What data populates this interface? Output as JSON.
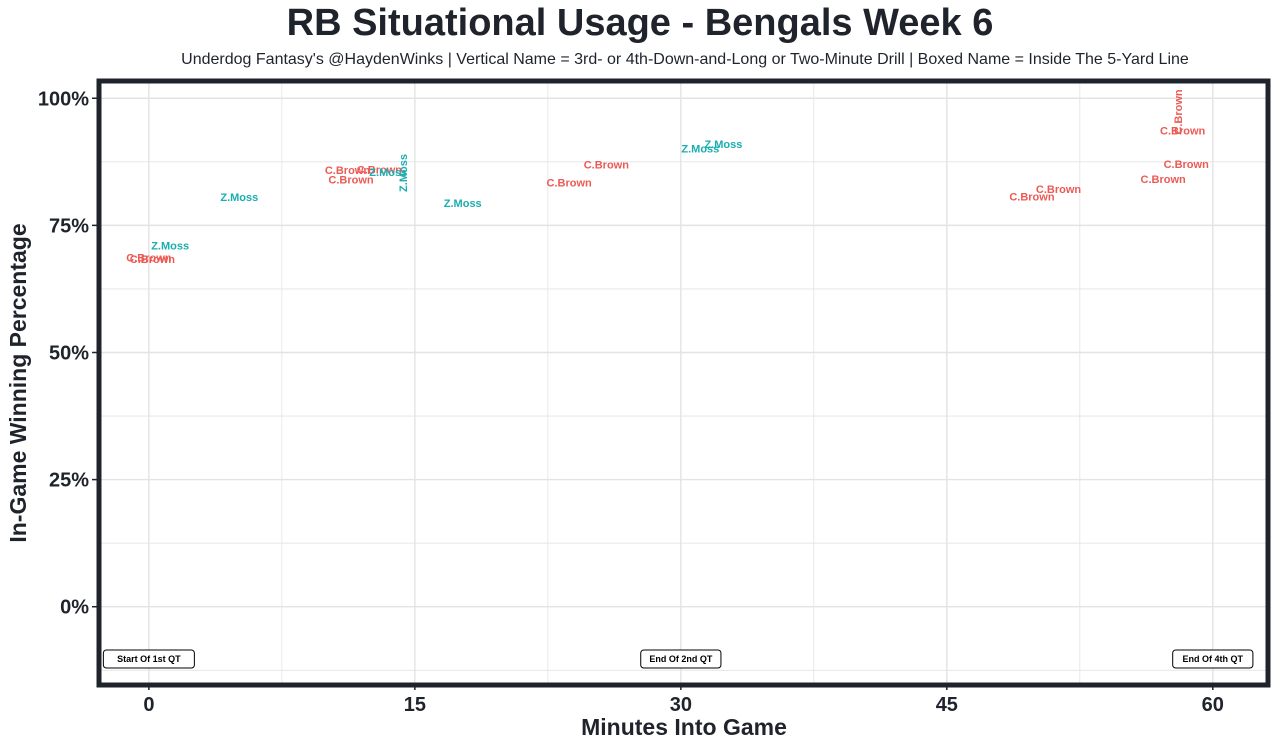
{
  "title": "RB Situational Usage - Bengals Week 6",
  "subtitle": "Underdog Fantasy's @HaydenWinks | Vertical Name = 3rd- or 4th-Down-and-Long or Two-Minute Drill | Boxed Name = Inside The 5-Yard Line",
  "colors": {
    "C.Brown": "#ec5a55",
    "Z.Moss": "#1aaeb0",
    "frame": "#1f232b",
    "grid": "#e3e3e3"
  },
  "chart_data": {
    "type": "scatter",
    "xlabel": "Minutes Into Game",
    "ylabel": "In-Game Winning Percentage",
    "xlim": [
      -2.7,
      63
    ],
    "ylim": [
      -15,
      103
    ],
    "x_ticks": [
      0,
      15,
      30,
      45,
      60
    ],
    "x_tick_labels": [
      "0",
      "15",
      "30",
      "45",
      "60"
    ],
    "y_ticks": [
      0,
      25,
      50,
      75,
      100
    ],
    "y_tick_labels": [
      "0%",
      "25%",
      "50%",
      "75%",
      "100%"
    ],
    "grid": true,
    "quarter_markers": [
      {
        "x": 0,
        "label": "Start Of 1st QT"
      },
      {
        "x": 30,
        "label": "End Of 2nd QT"
      },
      {
        "x": 60,
        "label": "End Of 4th QT"
      }
    ],
    "points": [
      {
        "player": "C.Brown",
        "x": 0.0,
        "y": 68.5,
        "vertical": false
      },
      {
        "player": "C.Brown",
        "x": 0.2,
        "y": 68.2,
        "vertical": false
      },
      {
        "player": "Z.Moss",
        "x": 1.2,
        "y": 70.8,
        "vertical": false
      },
      {
        "player": "Z.Moss",
        "x": 5.1,
        "y": 80.4,
        "vertical": false
      },
      {
        "player": "C.Brown",
        "x": 11.2,
        "y": 85.7,
        "vertical": false
      },
      {
        "player": "C.Brown",
        "x": 11.4,
        "y": 83.8,
        "vertical": false
      },
      {
        "player": "C.Brown",
        "x": 13.0,
        "y": 85.8,
        "vertical": false
      },
      {
        "player": "Z.Moss",
        "x": 13.5,
        "y": 85.3,
        "vertical": false
      },
      {
        "player": "Z.Moss",
        "x": 14.4,
        "y": 85.3,
        "vertical": true
      },
      {
        "player": "Z.Moss",
        "x": 17.7,
        "y": 79.2,
        "vertical": false
      },
      {
        "player": "C.Brown",
        "x": 23.7,
        "y": 83.2,
        "vertical": false
      },
      {
        "player": "C.Brown",
        "x": 25.8,
        "y": 86.8,
        "vertical": false
      },
      {
        "player": "Z.Moss",
        "x": 31.1,
        "y": 89.9,
        "vertical": false
      },
      {
        "player": "Z.Moss",
        "x": 32.4,
        "y": 90.8,
        "vertical": false
      },
      {
        "player": "C.Brown",
        "x": 49.8,
        "y": 80.5,
        "vertical": false
      },
      {
        "player": "C.Brown",
        "x": 51.3,
        "y": 81.9,
        "vertical": false
      },
      {
        "player": "C.Brown",
        "x": 57.2,
        "y": 83.9,
        "vertical": false
      },
      {
        "player": "C.Brown",
        "x": 58.5,
        "y": 86.9,
        "vertical": false
      },
      {
        "player": "C.Brown",
        "x": 58.3,
        "y": 93.4,
        "vertical": false
      },
      {
        "player": "C.Brown",
        "x": 58.1,
        "y": 97.3,
        "vertical": true
      }
    ]
  }
}
